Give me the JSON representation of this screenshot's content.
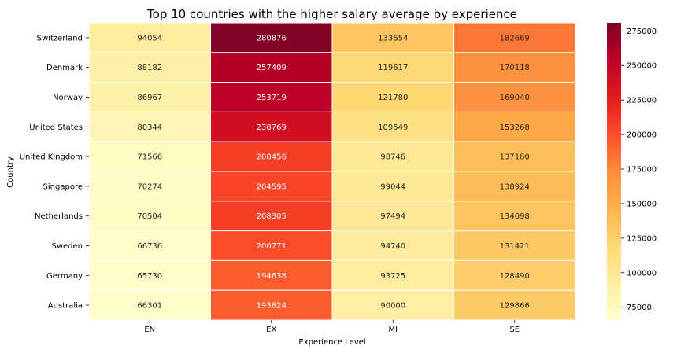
{
  "chart_data": {
    "type": "heatmap",
    "title": "Top 10 countries with the higher salary average by experience",
    "xlabel": "Experience Level",
    "ylabel": "Country",
    "x_categories": [
      "EN",
      "EX",
      "MI",
      "SE"
    ],
    "y_categories": [
      "Switzerland",
      "Denmark",
      "Norway",
      "United States",
      "United Kingdom",
      "Singapore",
      "Netherlands",
      "Sweden",
      "Germany",
      "Australia"
    ],
    "values": [
      [
        94054,
        280876,
        133654,
        182669
      ],
      [
        88182,
        257409,
        119617,
        170118
      ],
      [
        86967,
        253719,
        121780,
        169040
      ],
      [
        80344,
        238769,
        109549,
        153268
      ],
      [
        71566,
        208456,
        98746,
        137180
      ],
      [
        70274,
        204595,
        99044,
        138924
      ],
      [
        70504,
        208305,
        97494,
        134098
      ],
      [
        66736,
        200771,
        94740,
        131421
      ],
      [
        65730,
        194638,
        93725,
        128490
      ],
      [
        66301,
        193824,
        90000,
        129866
      ]
    ],
    "colorbar": {
      "colormap": "YlOrRd",
      "ticks": [
        75000,
        100000,
        125000,
        150000,
        175000,
        200000,
        225000,
        250000,
        275000
      ]
    },
    "grid": false,
    "legend": "colorbar-right",
    "annotated": true
  }
}
